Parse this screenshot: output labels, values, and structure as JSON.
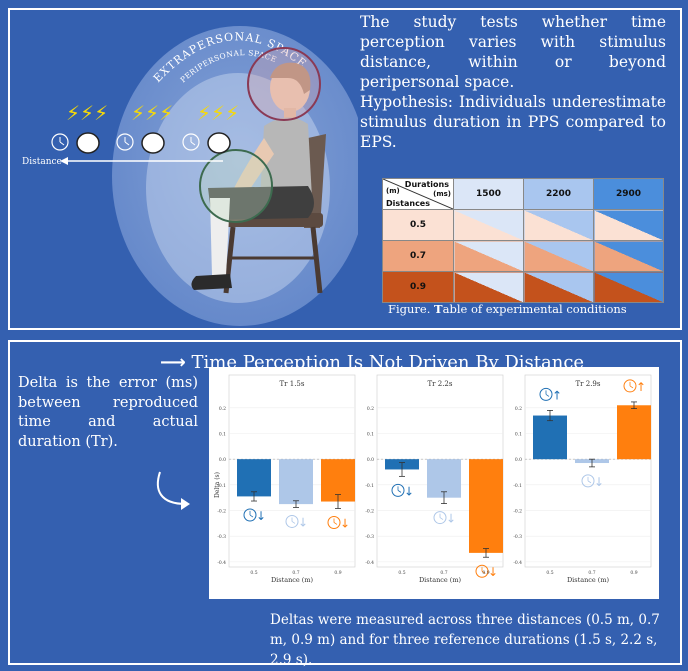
{
  "illustration": {
    "extrapersonal_label": "EXTRAPERSONAL SPACE",
    "peripersonal_label": "PERIPERSONAL SPACE",
    "distance_label": "Distance"
  },
  "study": {
    "description": "The study tests whether time perception varies with stimulus distance, within or beyond peripersonal space.",
    "hypothesis": "Hypothesis: Individuals underestimate stimulus duration in PPS compared to EPS."
  },
  "conditions_table": {
    "durations_label": "Durations",
    "durations_unit": "(ms)",
    "distances_unit": "(m)",
    "distances_label": "Distances",
    "durations": [
      "1500",
      "2200",
      "2900"
    ],
    "distances": [
      "0.5",
      "0.7",
      "0.9"
    ],
    "duration_colors": [
      "#dbe6f7",
      "#a9c6ef",
      "#4b8edc"
    ],
    "distance_colors": [
      "#fbe1d4",
      "#eea47e",
      "#c4521c"
    ],
    "caption_prefix": "Figure.",
    "caption_bold": "T",
    "caption_rest": "able of experimental conditions"
  },
  "results": {
    "title": "Time Perception Is Not Driven By Distance",
    "delta_description": "Delta is the error (ms) between reproduced time and actual duration (Tr).",
    "footer": "Deltas were measured across three distances (0.5 m, 0.7 m, 0.9 m) and for three reference durations (1.5 s, 2.2 s, 2.9 s)."
  },
  "chart_data": {
    "type": "bar",
    "ylabel": "Delta (s)",
    "xlabel": "Distance (m)",
    "ylim": [
      -0.42,
      0.25
    ],
    "yticks": [
      "0.2",
      "0.1",
      "0.0",
      "-0.1",
      "-0.2",
      "-0.3",
      "-0.4"
    ],
    "ytick_values": [
      0.2,
      0.1,
      0.0,
      -0.1,
      -0.2,
      -0.3,
      -0.4
    ],
    "categories": [
      "0.5",
      "0.7",
      "0.9"
    ],
    "bar_colors": [
      "#2070b4",
      "#aec7e8",
      "#ff7f0e"
    ],
    "panels": [
      {
        "title": "Tr 1.5s",
        "values": [
          -0.145,
          -0.175,
          -0.165
        ],
        "errors": [
          0.018,
          0.013,
          0.027
        ],
        "arrows": [
          "down",
          "down",
          "down"
        ]
      },
      {
        "title": "Tr 2.2s",
        "values": [
          -0.04,
          -0.15,
          -0.365
        ],
        "errors": [
          0.027,
          0.023,
          0.017
        ],
        "arrows": [
          "down",
          "down",
          "down"
        ]
      },
      {
        "title": "Tr 2.9s",
        "values": [
          0.17,
          -0.015,
          0.21
        ],
        "errors": [
          0.02,
          0.015,
          0.013
        ],
        "arrows": [
          "up",
          "down",
          "up"
        ]
      }
    ]
  }
}
